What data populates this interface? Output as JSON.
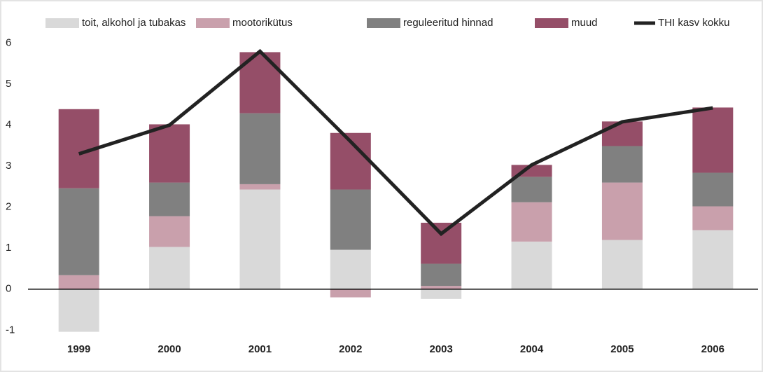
{
  "chart_data": {
    "type": "bar",
    "stacked": true,
    "categories": [
      "1999",
      "2000",
      "2001",
      "2002",
      "2003",
      "2004",
      "2005",
      "2006"
    ],
    "series": [
      {
        "name": "toit, alkohol ja tubakas",
        "color": "#d9d9d9",
        "values": [
          -1.04,
          1.03,
          2.43,
          0.96,
          -0.24,
          1.16,
          1.2,
          1.44
        ]
      },
      {
        "name": "mootorikütus",
        "color": "#c9a0ac",
        "values": [
          0.34,
          0.75,
          0.13,
          -0.2,
          0.08,
          0.96,
          1.4,
          0.58
        ]
      },
      {
        "name": "reguleeritud hinnad",
        "color": "#808080",
        "values": [
          2.12,
          0.82,
          1.73,
          1.47,
          0.54,
          0.62,
          0.89,
          0.82
        ]
      },
      {
        "name": "muud",
        "color": "#954e68",
        "values": [
          1.93,
          1.42,
          1.49,
          1.38,
          1.0,
          0.29,
          0.6,
          1.59
        ]
      },
      {
        "name": "THI kasv kokku",
        "color": "#222222",
        "type": "line",
        "values": [
          3.3,
          4.0,
          5.8,
          3.6,
          1.35,
          3.03,
          4.08,
          4.42
        ]
      }
    ],
    "ylim": [
      -1.2,
      6.3
    ],
    "yticks": [
      -1,
      0,
      1,
      2,
      3,
      4,
      5,
      6
    ],
    "legend": "top"
  }
}
